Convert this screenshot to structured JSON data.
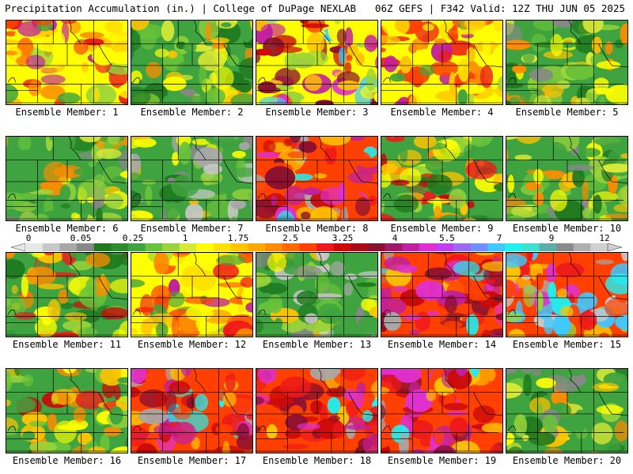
{
  "header": {
    "title": "Precipitation Accumulation (in.) | College of DuPage NEXLAB",
    "info": "06Z GEFS | F342 Valid: 12Z THU JUN 05 2025"
  },
  "legend": {
    "labels": [
      "0",
      "0.05",
      "0.25",
      "1",
      "1.75",
      "2.5",
      "3.25",
      "4",
      "5.5",
      "7",
      "9",
      "12"
    ],
    "colors": [
      "#e8e8e8",
      "#c8c8c8",
      "#a8a8a8",
      "#888888",
      "#1f7a1f",
      "#2e8b2e",
      "#3fa33f",
      "#68c23a",
      "#9ad43a",
      "#d8e836",
      "#ffff00",
      "#ffe000",
      "#ffc400",
      "#ffa800",
      "#ff8c00",
      "#ff6a00",
      "#ff4000",
      "#ee1a1a",
      "#cc0a0a",
      "#aa0a1a",
      "#8a1030",
      "#a0186a",
      "#c020a0",
      "#e030d0",
      "#c040f0",
      "#9a6af5",
      "#7090ff",
      "#40c8ff",
      "#20f0f0",
      "#40e0d0",
      "#5ab0a8",
      "#8a8a8a",
      "#b0b0b0",
      "#d0d0d0"
    ]
  },
  "panels": [
    {
      "label": "Ensemble Member: 1"
    },
    {
      "label": "Ensemble Member: 2"
    },
    {
      "label": "Ensemble Member: 3"
    },
    {
      "label": "Ensemble Member: 4"
    },
    {
      "label": "Ensemble Member: 5"
    },
    {
      "label": "Ensemble Member: 6"
    },
    {
      "label": "Ensemble Member: 7"
    },
    {
      "label": "Ensemble Member: 8"
    },
    {
      "label": "Ensemble Member: 9"
    },
    {
      "label": "Ensemble Member: 10"
    },
    {
      "label": "Ensemble Member: 11"
    },
    {
      "label": "Ensemble Member: 12"
    },
    {
      "label": "Ensemble Member: 13"
    },
    {
      "label": "Ensemble Member: 14"
    },
    {
      "label": "Ensemble Member: 15"
    },
    {
      "label": "Ensemble Member: 16"
    },
    {
      "label": "Ensemble Member: 17"
    },
    {
      "label": "Ensemble Member: 18"
    },
    {
      "label": "Ensemble Member: 19"
    },
    {
      "label": "Ensemble Member: 20"
    }
  ],
  "dominant_fields": [
    "yellow-red",
    "green-yellow",
    "yellow-magenta",
    "yellow-red",
    "green-yellow",
    "green-yellow",
    "green-gray",
    "red-magenta",
    "green-red",
    "green-yellow",
    "green-red",
    "yellow-red",
    "green-gray",
    "red-magenta",
    "red-cyan",
    "green-red",
    "red-magenta",
    "red-magenta",
    "red-magenta",
    "green-yellow"
  ]
}
